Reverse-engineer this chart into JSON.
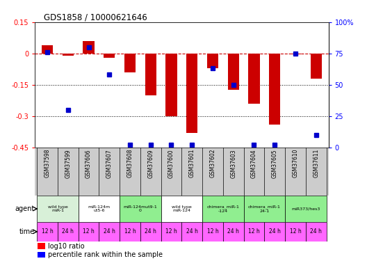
{
  "title": "GDS1858 / 10000621646",
  "samples": [
    "GSM37598",
    "GSM37599",
    "GSM37606",
    "GSM37607",
    "GSM37608",
    "GSM37609",
    "GSM37600",
    "GSM37601",
    "GSM37602",
    "GSM37603",
    "GSM37604",
    "GSM37605",
    "GSM37610",
    "GSM37611"
  ],
  "log10_ratio": [
    0.04,
    -0.01,
    0.06,
    -0.02,
    -0.09,
    -0.2,
    -0.3,
    -0.38,
    -0.07,
    -0.175,
    -0.24,
    -0.34,
    -0.005,
    -0.12
  ],
  "percentile_rank": [
    76,
    30,
    80,
    58,
    2,
    2,
    2,
    2,
    63,
    50,
    2,
    2,
    75,
    10
  ],
  "ylim": [
    -0.45,
    0.15
  ],
  "yticks_left": [
    0.15,
    0,
    -0.15,
    -0.3,
    -0.45
  ],
  "yticks_right": [
    100,
    75,
    50,
    25,
    0
  ],
  "agent_groups": [
    {
      "label": "wild type\nmiR-1",
      "span": [
        0,
        2
      ],
      "color": "#d8f0d8"
    },
    {
      "label": "miR-124m\nut5-6",
      "span": [
        2,
        4
      ],
      "color": "#ffffff"
    },
    {
      "label": "miR-124mut9-1\n0",
      "span": [
        4,
        6
      ],
      "color": "#90EE90"
    },
    {
      "label": "wild type\nmiR-124",
      "span": [
        6,
        8
      ],
      "color": "#ffffff"
    },
    {
      "label": "chimera_miR-1\n-124",
      "span": [
        8,
        10
      ],
      "color": "#90EE90"
    },
    {
      "label": "chimera_miR-1\n24-1",
      "span": [
        10,
        12
      ],
      "color": "#90EE90"
    },
    {
      "label": "miR373/hes3",
      "span": [
        12,
        14
      ],
      "color": "#90EE90"
    }
  ],
  "time_labels": [
    "12 h",
    "24 h",
    "12 h",
    "24 h",
    "12 h",
    "24 h",
    "12 h",
    "24 h",
    "12 h",
    "24 h",
    "12 h",
    "24 h",
    "12 h",
    "24 h"
  ],
  "time_color": "#FF66FF",
  "bar_color": "#CC0000",
  "dot_color": "#0000CC",
  "hline_color": "#CC0000",
  "dotted_line_color": "#000000",
  "sample_bg_color": "#cccccc",
  "bg_color": "#ffffff"
}
